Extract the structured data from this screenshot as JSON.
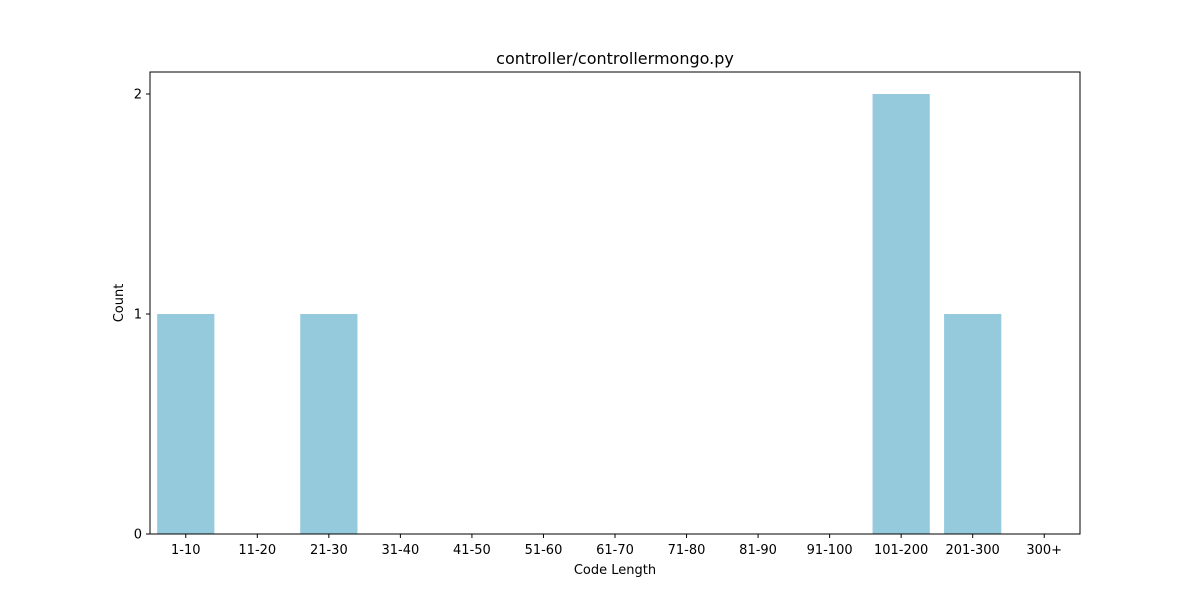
{
  "chart_data": {
    "type": "bar",
    "title": "controller/controllermongo.py",
    "xlabel": "Code Length",
    "ylabel": "Count",
    "categories": [
      "1-10",
      "11-20",
      "21-30",
      "31-40",
      "41-50",
      "51-60",
      "61-70",
      "71-80",
      "81-90",
      "91-100",
      "101-200",
      "201-300",
      "300+"
    ],
    "values": [
      1,
      0,
      1,
      0,
      0,
      0,
      0,
      0,
      0,
      0,
      2,
      1,
      0
    ],
    "yticks": [
      "0",
      "1",
      "2"
    ],
    "ylim": [
      0,
      2.1
    ],
    "grid": false,
    "legend": "none",
    "bar_color": "#95cadd",
    "axis_color": "#000000"
  }
}
